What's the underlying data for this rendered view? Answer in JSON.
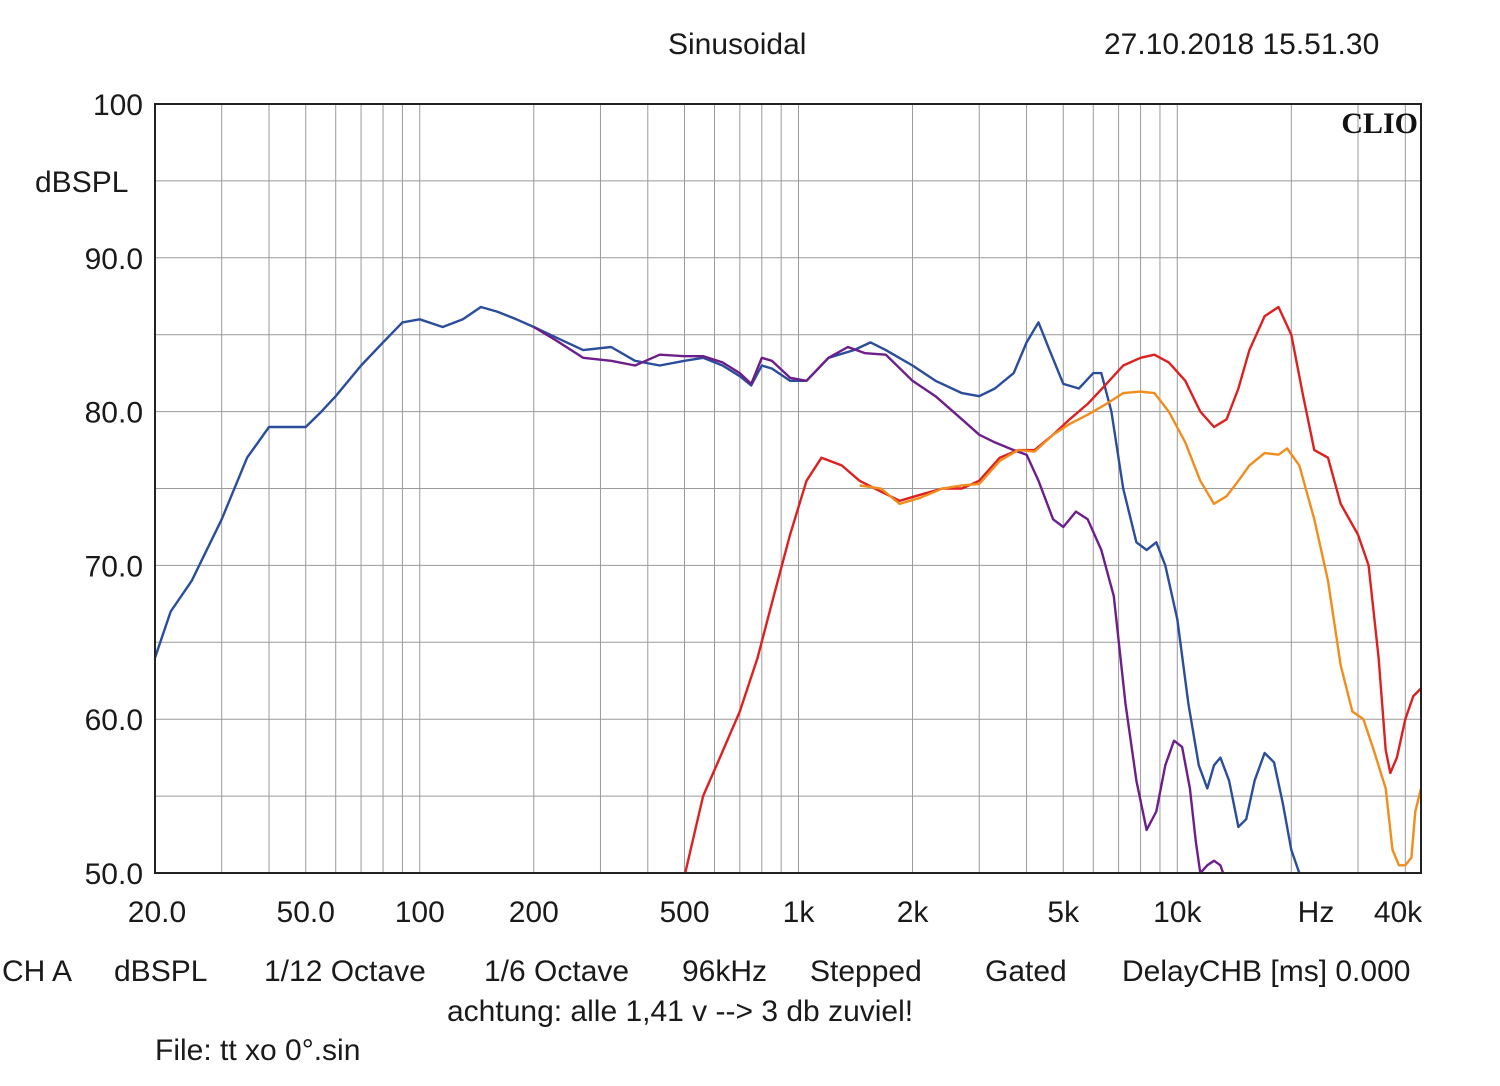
{
  "header": {
    "mode": "Sinusoidal",
    "timestamp": "27.10.2018 15.51.30"
  },
  "brand": "CLIO",
  "chart_data": {
    "type": "line",
    "xscale": "log",
    "xlim": [
      20,
      44000
    ],
    "ylim": [
      50,
      100
    ],
    "grid": true,
    "y_unit": "dBSPL",
    "x_unit": "Hz",
    "y_ticks": [
      "100",
      "90.0",
      "80.0",
      "70.0",
      "60.0",
      "50.0"
    ],
    "x_ticks": [
      {
        "v": 20,
        "label": "20.0"
      },
      {
        "v": 50,
        "label": "50.0"
      },
      {
        "v": 100,
        "label": "100"
      },
      {
        "v": 200,
        "label": "200"
      },
      {
        "v": 500,
        "label": "500"
      },
      {
        "v": 1000,
        "label": "1k"
      },
      {
        "v": 2000,
        "label": "2k"
      },
      {
        "v": 5000,
        "label": "5k"
      },
      {
        "v": 10000,
        "label": "10k"
      },
      {
        "v": 40000,
        "label": "40k"
      }
    ],
    "series": [
      {
        "color": "#2a4d9c",
        "points": [
          [
            20,
            64
          ],
          [
            22,
            67
          ],
          [
            25,
            69
          ],
          [
            30,
            73
          ],
          [
            35,
            77
          ],
          [
            40,
            79
          ],
          [
            45,
            79
          ],
          [
            50,
            79
          ],
          [
            55,
            80
          ],
          [
            60,
            81
          ],
          [
            70,
            83
          ],
          [
            80,
            84.5
          ],
          [
            90,
            85.8
          ],
          [
            100,
            86
          ],
          [
            115,
            85.5
          ],
          [
            130,
            86
          ],
          [
            145,
            86.8
          ],
          [
            160,
            86.5
          ],
          [
            180,
            86
          ],
          [
            200,
            85.5
          ],
          [
            230,
            84.8
          ],
          [
            270,
            84
          ],
          [
            320,
            84.2
          ],
          [
            370,
            83.3
          ],
          [
            430,
            83
          ],
          [
            500,
            83.3
          ],
          [
            560,
            83.5
          ],
          [
            630,
            83
          ],
          [
            700,
            82.3
          ],
          [
            750,
            81.7
          ],
          [
            800,
            83
          ],
          [
            850,
            82.8
          ],
          [
            950,
            82
          ],
          [
            1050,
            82
          ],
          [
            1200,
            83.5
          ],
          [
            1400,
            84
          ],
          [
            1550,
            84.5
          ],
          [
            1700,
            84
          ],
          [
            2000,
            83
          ],
          [
            2300,
            82
          ],
          [
            2700,
            81.2
          ],
          [
            3000,
            81
          ],
          [
            3300,
            81.5
          ],
          [
            3700,
            82.5
          ],
          [
            4000,
            84.5
          ],
          [
            4300,
            85.8
          ],
          [
            4600,
            84
          ],
          [
            5000,
            81.8
          ],
          [
            5500,
            81.5
          ],
          [
            6000,
            82.5
          ],
          [
            6300,
            82.5
          ],
          [
            6700,
            80
          ],
          [
            7200,
            75
          ],
          [
            7800,
            71.5
          ],
          [
            8300,
            71
          ],
          [
            8800,
            71.5
          ],
          [
            9300,
            70
          ],
          [
            10000,
            66.5
          ],
          [
            10700,
            61
          ],
          [
            11400,
            57
          ],
          [
            12000,
            55.5
          ],
          [
            12500,
            57
          ],
          [
            13000,
            57.5
          ],
          [
            13700,
            56
          ],
          [
            14500,
            53
          ],
          [
            15200,
            53.5
          ],
          [
            16000,
            56
          ],
          [
            17000,
            57.8
          ],
          [
            18000,
            57.2
          ],
          [
            19000,
            54.5
          ],
          [
            20000,
            51.5
          ],
          [
            21000,
            50
          ]
        ]
      },
      {
        "color": "#6e1e8a",
        "points": [
          [
            200,
            85.5
          ],
          [
            230,
            84.6
          ],
          [
            270,
            83.5
          ],
          [
            320,
            83.3
          ],
          [
            370,
            83
          ],
          [
            430,
            83.7
          ],
          [
            500,
            83.6
          ],
          [
            560,
            83.6
          ],
          [
            630,
            83.2
          ],
          [
            700,
            82.5
          ],
          [
            750,
            81.8
          ],
          [
            800,
            83.5
          ],
          [
            850,
            83.3
          ],
          [
            950,
            82.2
          ],
          [
            1050,
            82
          ],
          [
            1200,
            83.5
          ],
          [
            1350,
            84.2
          ],
          [
            1500,
            83.8
          ],
          [
            1700,
            83.7
          ],
          [
            2000,
            82
          ],
          [
            2300,
            81
          ],
          [
            2700,
            79.5
          ],
          [
            3000,
            78.5
          ],
          [
            3300,
            78
          ],
          [
            3700,
            77.5
          ],
          [
            4000,
            77.2
          ],
          [
            4300,
            75.5
          ],
          [
            4700,
            73
          ],
          [
            5000,
            72.5
          ],
          [
            5400,
            73.5
          ],
          [
            5800,
            73
          ],
          [
            6300,
            71
          ],
          [
            6800,
            68
          ],
          [
            7300,
            61
          ],
          [
            7800,
            56
          ],
          [
            8300,
            52.8
          ],
          [
            8800,
            54
          ],
          [
            9300,
            57
          ],
          [
            9800,
            58.6
          ],
          [
            10300,
            58.2
          ],
          [
            10800,
            55.5
          ],
          [
            11200,
            52
          ],
          [
            11500,
            50
          ],
          [
            12000,
            50.5
          ],
          [
            12500,
            50.8
          ],
          [
            13000,
            50.5
          ],
          [
            13300,
            49.8
          ]
        ]
      },
      {
        "color": "#dd2020",
        "points": [
          [
            500,
            49.8
          ],
          [
            560,
            55
          ],
          [
            620,
            57.5
          ],
          [
            700,
            60.5
          ],
          [
            780,
            64
          ],
          [
            860,
            68
          ],
          [
            950,
            72
          ],
          [
            1050,
            75.5
          ],
          [
            1150,
            77
          ],
          [
            1300,
            76.5
          ],
          [
            1450,
            75.5
          ],
          [
            1650,
            74.8
          ],
          [
            1850,
            74.2
          ],
          [
            2100,
            74.6
          ],
          [
            2400,
            75
          ],
          [
            2700,
            75
          ],
          [
            3000,
            75.5
          ],
          [
            3400,
            77
          ],
          [
            3800,
            77.5
          ],
          [
            4200,
            77.5
          ],
          [
            4700,
            78.5
          ],
          [
            5200,
            79.5
          ],
          [
            5800,
            80.5
          ],
          [
            6500,
            81.8
          ],
          [
            7200,
            83
          ],
          [
            8000,
            83.5
          ],
          [
            8700,
            83.7
          ],
          [
            9500,
            83.2
          ],
          [
            10500,
            82
          ],
          [
            11500,
            80
          ],
          [
            12500,
            79
          ],
          [
            13500,
            79.5
          ],
          [
            14500,
            81.5
          ],
          [
            15500,
            84
          ],
          [
            17000,
            86.2
          ],
          [
            18500,
            86.8
          ],
          [
            20000,
            85
          ],
          [
            21500,
            81
          ],
          [
            23000,
            77.5
          ],
          [
            25000,
            77
          ],
          [
            27000,
            74
          ],
          [
            30000,
            72
          ],
          [
            32000,
            70
          ],
          [
            34000,
            64
          ],
          [
            35500,
            58
          ],
          [
            36500,
            56.5
          ],
          [
            38000,
            57.5
          ],
          [
            40000,
            60
          ],
          [
            42000,
            61.5
          ],
          [
            44000,
            62
          ]
        ]
      },
      {
        "color": "#f08d1c",
        "points": [
          [
            1450,
            75.2
          ],
          [
            1650,
            75
          ],
          [
            1850,
            74
          ],
          [
            2100,
            74.4
          ],
          [
            2400,
            75
          ],
          [
            2700,
            75.2
          ],
          [
            3000,
            75.3
          ],
          [
            3400,
            76.8
          ],
          [
            3800,
            77.5
          ],
          [
            4200,
            77.4
          ],
          [
            4700,
            78.5
          ],
          [
            5200,
            79.2
          ],
          [
            5800,
            79.8
          ],
          [
            6500,
            80.5
          ],
          [
            7200,
            81.2
          ],
          [
            8000,
            81.3
          ],
          [
            8700,
            81.2
          ],
          [
            9500,
            80
          ],
          [
            10500,
            78
          ],
          [
            11500,
            75.5
          ],
          [
            12500,
            74
          ],
          [
            13500,
            74.5
          ],
          [
            14500,
            75.5
          ],
          [
            15500,
            76.5
          ],
          [
            17000,
            77.3
          ],
          [
            18500,
            77.2
          ],
          [
            19500,
            77.6
          ],
          [
            21000,
            76.5
          ],
          [
            23000,
            73
          ],
          [
            25000,
            69
          ],
          [
            27000,
            63.5
          ],
          [
            29000,
            60.5
          ],
          [
            31000,
            60
          ],
          [
            33000,
            58
          ],
          [
            35500,
            55.5
          ],
          [
            37000,
            51.5
          ],
          [
            38500,
            50.5
          ],
          [
            40000,
            50.5
          ],
          [
            41500,
            51
          ],
          [
            42500,
            54
          ],
          [
            44000,
            55.5
          ]
        ]
      }
    ]
  },
  "footer": {
    "ch": "CH A",
    "unit": "dBSPL",
    "res": "1/12 Octave",
    "smoothing": "1/6 Octave",
    "rate": "96kHz",
    "mode": "Stepped",
    "gating": "Gated",
    "delay": "DelayCHB [ms] 0.000",
    "note": "achtung: alle 1,41 v --> 3 db zuviel!",
    "file": "File: tt xo 0°.sin"
  }
}
